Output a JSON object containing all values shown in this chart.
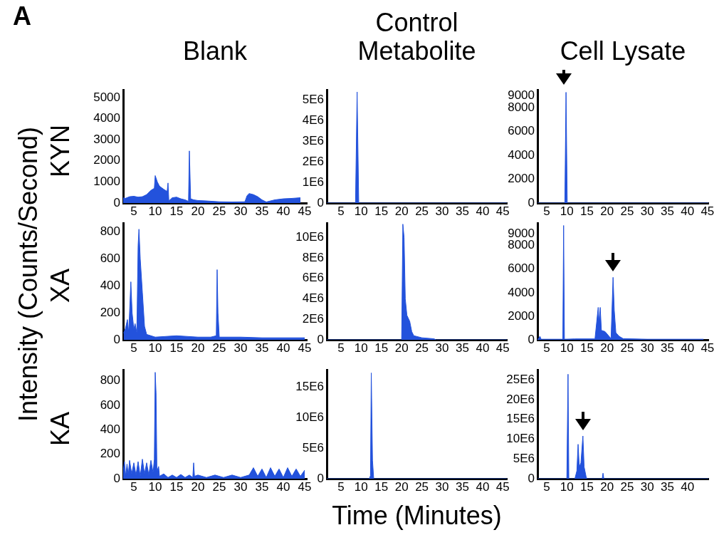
{
  "chart_data": [
    {
      "type": "area",
      "title": "Blank",
      "ylabel": "KYN",
      "annotations": [
        "A",
        "Intensity (Counts/Second)"
      ],
      "color": "#2352dc",
      "xlim": [
        2.5,
        45.5
      ],
      "xticks": [
        5,
        10,
        15,
        20,
        25,
        30,
        35,
        40,
        45
      ],
      "ylim": [
        0,
        5360
      ],
      "yticks": [
        0,
        1000,
        2000,
        3000,
        4000,
        5000
      ],
      "x": [
        2.5,
        3,
        4,
        5,
        6,
        7,
        8,
        9,
        9.8,
        10,
        10.5,
        11,
        12,
        12.8,
        13,
        13.2,
        14,
        15,
        16,
        17,
        17.8,
        18,
        18.3,
        19,
        20,
        22,
        25,
        28,
        31,
        31.5,
        32,
        33,
        34,
        35,
        36,
        38,
        40,
        42,
        44
      ],
      "values": [
        250,
        220,
        300,
        320,
        280,
        300,
        400,
        600,
        700,
        1300,
        1000,
        800,
        650,
        550,
        950,
        100,
        250,
        280,
        200,
        150,
        80,
        2470,
        200,
        150,
        120,
        100,
        60,
        50,
        60,
        350,
        450,
        400,
        300,
        150,
        50,
        150,
        200,
        220,
        250
      ]
    },
    {
      "type": "area",
      "title": "Control Metabolite",
      "color": "#2352dc",
      "xlim": [
        1.5,
        46
      ],
      "xticks": [
        5,
        10,
        15,
        20,
        25,
        30,
        35,
        40,
        45
      ],
      "ylim": [
        0,
        5500000
      ],
      "yticks": [
        0,
        {
          "value": 1000000,
          "label": "1E6"
        },
        {
          "value": 2000000,
          "label": "2E6"
        },
        {
          "value": 3000000,
          "label": "3E6"
        },
        {
          "value": 4000000,
          "label": "4E6"
        },
        {
          "value": 5000000,
          "label": "5E6"
        }
      ],
      "x": [
        1.5,
        8.6,
        9,
        9.4,
        46
      ],
      "values": [
        0,
        0,
        5400000,
        0,
        0
      ]
    },
    {
      "type": "area",
      "title": "Cell Lysate",
      "color": "#2352dc",
      "xlim": [
        2.7,
        45.2
      ],
      "xticks": [
        5,
        10,
        15,
        20,
        25,
        30,
        35,
        40,
        45
      ],
      "ylim": [
        0,
        9500
      ],
      "yticks": [
        0,
        2000,
        4000,
        6000,
        8000,
        9000
      ],
      "x": [
        2.7,
        9.5,
        9.8,
        10.1,
        45.2
      ],
      "values": [
        0,
        0,
        9300,
        0,
        0
      ]
    },
    {
      "type": "area",
      "ylabel": "XA",
      "color": "#2352dc",
      "xlim": [
        2.5,
        45.5
      ],
      "xticks": [
        5,
        10,
        15,
        20,
        25,
        30,
        35,
        40,
        45
      ],
      "ylim": [
        0,
        865
      ],
      "yticks": [
        0,
        200,
        400,
        600,
        800
      ],
      "x": [
        2.6,
        3,
        3.5,
        3.8,
        4.3,
        4.6,
        5,
        5.3,
        5.7,
        6,
        6.2,
        6.5,
        7,
        7.5,
        8,
        9,
        10,
        15,
        20,
        23,
        24.3,
        24.5,
        24.7,
        25,
        30,
        35,
        40,
        45
      ],
      "values": [
        50,
        80,
        150,
        50,
        430,
        200,
        80,
        120,
        50,
        700,
        820,
        600,
        350,
        100,
        40,
        30,
        20,
        30,
        20,
        20,
        30,
        520,
        200,
        20,
        20,
        15,
        15,
        15
      ]
    },
    {
      "type": "area",
      "color": "#2352dc",
      "xlim": [
        1.5,
        46
      ],
      "xticks": [
        5,
        10,
        15,
        20,
        25,
        30,
        35,
        40,
        45
      ],
      "ylim": [
        0,
        11400000
      ],
      "yticks": [
        0,
        {
          "value": 2000000,
          "label": "2E6"
        },
        {
          "value": 4000000,
          "label": "4E6"
        },
        {
          "value": 6000000,
          "label": "6E6"
        },
        {
          "value": 8000000,
          "label": "8E6"
        },
        {
          "value": 10000000,
          "label": "10E6"
        }
      ],
      "x": [
        1.5,
        20,
        20.3,
        20.6,
        20.9,
        21.3,
        22,
        22.5,
        23,
        25,
        28,
        28.5,
        46
      ],
      "values": [
        0,
        0,
        11300000,
        10000000,
        4000000,
        2400000,
        1800000,
        800000,
        400000,
        200000,
        100000,
        0,
        0
      ]
    },
    {
      "type": "area",
      "color": "#2352dc",
      "xlim": [
        2.7,
        45.2
      ],
      "xticks": [
        5,
        10,
        15,
        20,
        25,
        30,
        35,
        40,
        45
      ],
      "ylim": [
        0,
        9900
      ],
      "yticks": [
        0,
        2000,
        4000,
        6000,
        8000,
        9000
      ],
      "x": [
        2.7,
        3,
        3.3,
        3.6,
        5,
        9,
        9.2,
        9.4,
        12,
        17,
        17.8,
        18,
        18.3,
        18.6,
        19.5,
        20.5,
        21,
        21.5,
        21.8,
        22.2,
        23,
        24,
        30,
        44
      ],
      "values": [
        50,
        100,
        300,
        50,
        50,
        50,
        9700,
        50,
        80,
        80,
        2750,
        1500,
        2750,
        800,
        700,
        300,
        100,
        5300,
        2500,
        600,
        300,
        100,
        50,
        50
      ]
    },
    {
      "type": "area",
      "ylabel": "KA",
      "color": "#2352dc",
      "xlim": [
        2.5,
        45.5
      ],
      "xticks": [
        5,
        10,
        15,
        20,
        25,
        30,
        35,
        40,
        45
      ],
      "ylim": [
        0,
        890
      ],
      "yticks": [
        0,
        200,
        400,
        600,
        800
      ],
      "x": [
        2.5,
        2.8,
        3.1,
        3.4,
        3.7,
        4,
        4.5,
        5,
        5.5,
        6,
        6.5,
        7,
        7.5,
        8,
        8.5,
        9,
        9.5,
        9.8,
        10,
        10.2,
        10.4,
        10.8,
        11,
        12,
        13,
        14,
        15,
        16,
        17,
        18,
        18.8,
        19,
        19.2,
        20,
        22,
        24,
        26,
        28,
        30,
        32,
        33,
        34,
        35,
        36,
        37,
        38,
        39,
        40,
        41,
        42,
        43,
        44,
        45
      ],
      "values": [
        60,
        140,
        20,
        120,
        30,
        150,
        40,
        130,
        30,
        140,
        20,
        160,
        40,
        130,
        30,
        150,
        50,
        160,
        870,
        700,
        60,
        100,
        20,
        40,
        10,
        30,
        10,
        35,
        10,
        30,
        10,
        130,
        20,
        30,
        10,
        30,
        10,
        30,
        10,
        30,
        90,
        20,
        80,
        10,
        90,
        20,
        80,
        10,
        90,
        20,
        80,
        20,
        70
      ]
    },
    {
      "type": "area",
      "xlabel": "Time (Minutes)",
      "color": "#2352dc",
      "xlim": [
        1.5,
        46
      ],
      "xticks": [
        5,
        10,
        15,
        20,
        25,
        30,
        35,
        40,
        45
      ],
      "ylim": [
        0,
        17800000
      ],
      "yticks": [
        0,
        {
          "value": 5000000,
          "label": "5E6"
        },
        {
          "value": 10000000,
          "label": "10E6"
        },
        {
          "value": 15000000,
          "label": "15E6"
        }
      ],
      "x": [
        1.5,
        12,
        12.3,
        12.5,
        12.8,
        13.1,
        46
      ],
      "values": [
        0,
        0,
        500000,
        17300000,
        3000000,
        0,
        0
      ]
    },
    {
      "type": "area",
      "color": "#2352dc",
      "xlim": [
        2.7,
        45.2
      ],
      "xticks": [
        5,
        10,
        15,
        20,
        25,
        30,
        35,
        40
      ],
      "ylim": [
        0,
        27500000
      ],
      "yticks": [
        0,
        {
          "value": 5000000,
          "label": "5E6"
        },
        {
          "value": 10000000,
          "label": "10E6"
        },
        {
          "value": 15000000,
          "label": "15E6"
        },
        {
          "value": 20000000,
          "label": "20E6"
        },
        {
          "value": 25000000,
          "label": "25E6"
        }
      ],
      "x": [
        2.7,
        10,
        10.3,
        10.5,
        12,
        12.5,
        12.8,
        13.1,
        13.5,
        14,
        14.3,
        14.8,
        15,
        18.8,
        19,
        19.2,
        45.2
      ],
      "values": [
        0,
        0,
        26400000,
        0,
        0,
        2000000,
        8700000,
        3000000,
        4000000,
        10800000,
        3000000,
        500000,
        0,
        0,
        1400000,
        0,
        0
      ]
    }
  ]
}
